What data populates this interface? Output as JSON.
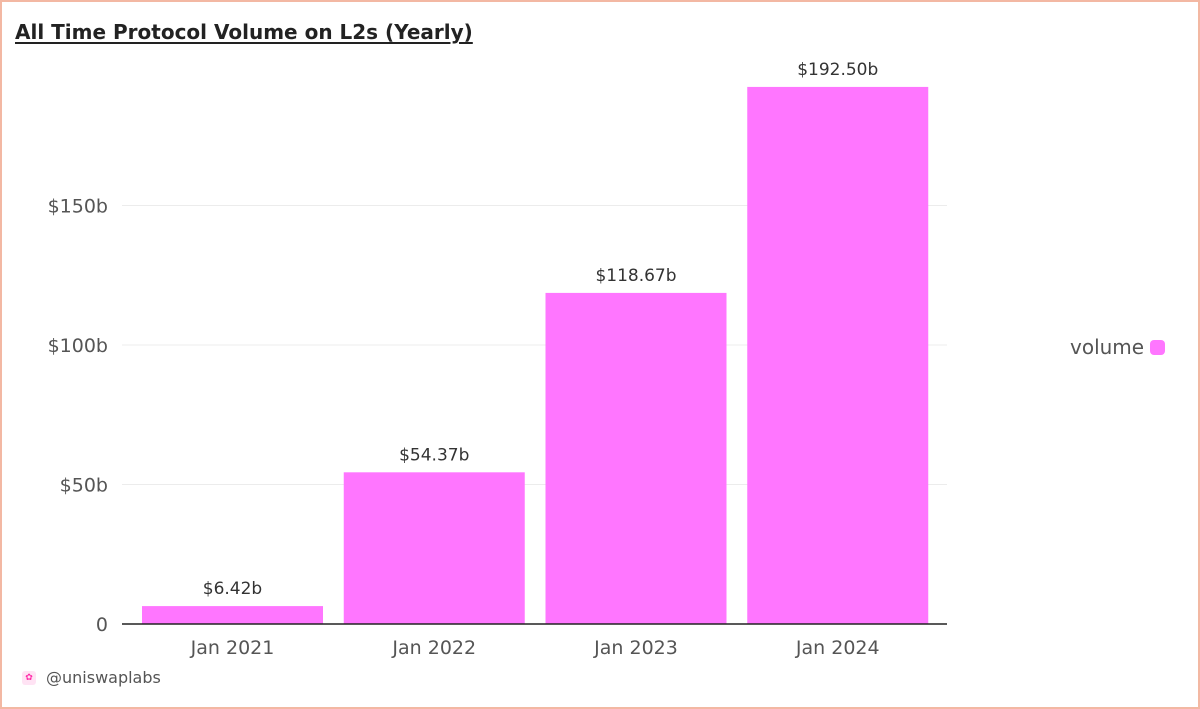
{
  "chart_data": {
    "type": "bar",
    "title": "All Time Protocol Volume on L2s (Yearly)",
    "categories": [
      "Jan 2021",
      "Jan 2022",
      "Jan 2023",
      "Jan 2024"
    ],
    "series": [
      {
        "name": "volume",
        "values": [
          6.42,
          54.37,
          118.67,
          192.5
        ],
        "value_labels": [
          "$6.42b",
          "$54.37b",
          "$118.67b",
          "$192.50b"
        ],
        "color": "#ff76ff"
      }
    ],
    "y_unit": "billions USD",
    "ylim": [
      0,
      205
    ],
    "y_ticks": [
      0,
      50,
      100,
      150
    ],
    "y_tick_labels": [
      "0",
      "$50b",
      "$100b",
      "$150b"
    ],
    "grid": true,
    "legend": "right"
  },
  "legend": {
    "label": "volume",
    "color": "#ff76ff"
  },
  "footer": {
    "handle": "@uniswaplabs",
    "logo_icon": "unicorn-icon"
  }
}
